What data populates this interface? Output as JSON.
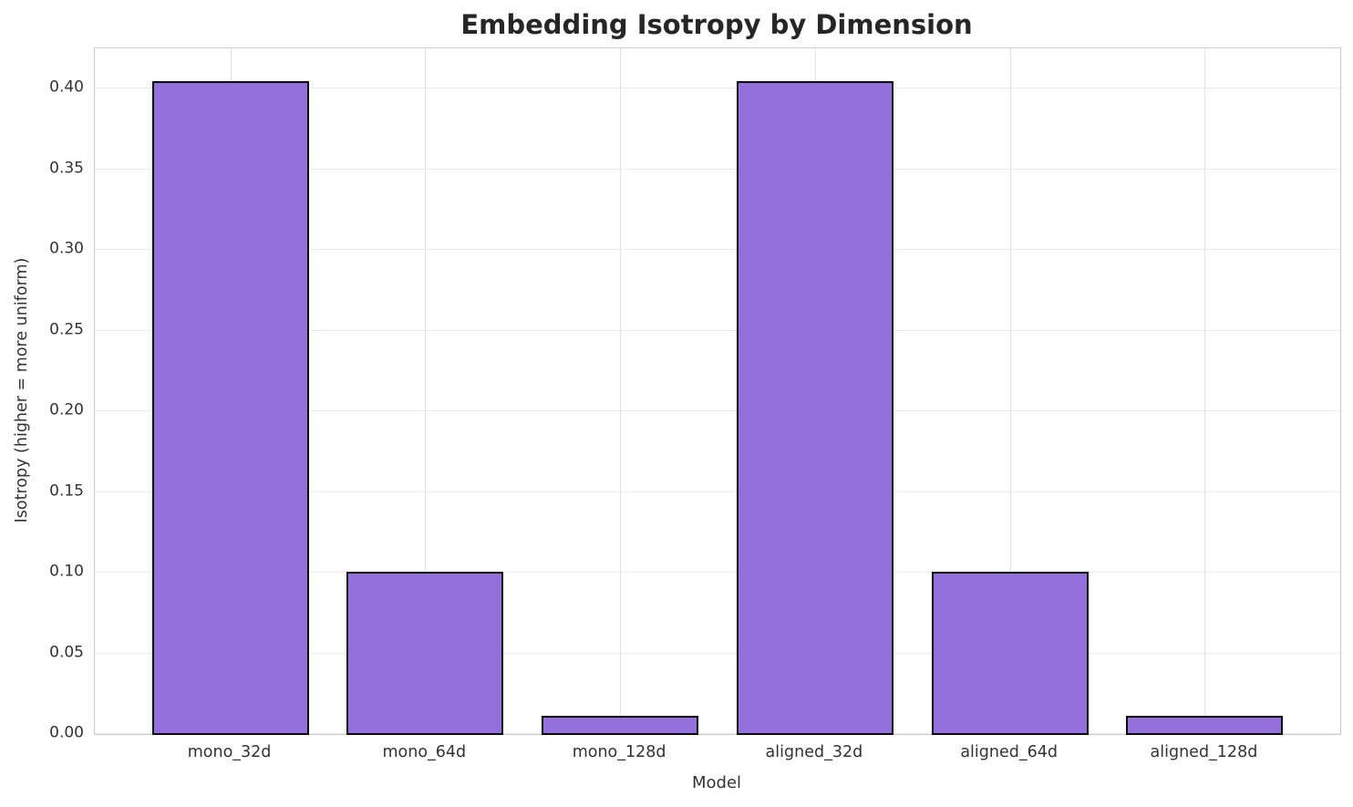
{
  "title": "Embedding Isotropy by Dimension",
  "chart_data": {
    "type": "bar",
    "title": "Embedding Isotropy by Dimension",
    "categories": [
      "mono_32d",
      "mono_64d",
      "mono_128d",
      "aligned_32d",
      "aligned_64d",
      "aligned_128d"
    ],
    "values": [
      0.405,
      0.101,
      0.012,
      0.405,
      0.101,
      0.012
    ],
    "xlabel": "Model",
    "ylabel": "Isotropy (higher = more uniform)",
    "ylim": [
      0,
      0.425
    ],
    "yticks": [
      0.0,
      0.05,
      0.1,
      0.15,
      0.2,
      0.25,
      0.3,
      0.35,
      0.4
    ],
    "ytick_labels": [
      "0.00",
      "0.05",
      "0.10",
      "0.15",
      "0.20",
      "0.25",
      "0.30",
      "0.35",
      "0.40"
    ],
    "grid": true,
    "legend_position": "none",
    "bar_color": "#9370DB",
    "bar_edge_color": "#0a0a0a"
  },
  "colors": {
    "background": "#ffffff",
    "grid_horizontal": "#ebebeb",
    "grid_vertical": "#e2e2e2",
    "spine": "#cccccc",
    "title_text": "#262626",
    "label_text": "#333333"
  }
}
